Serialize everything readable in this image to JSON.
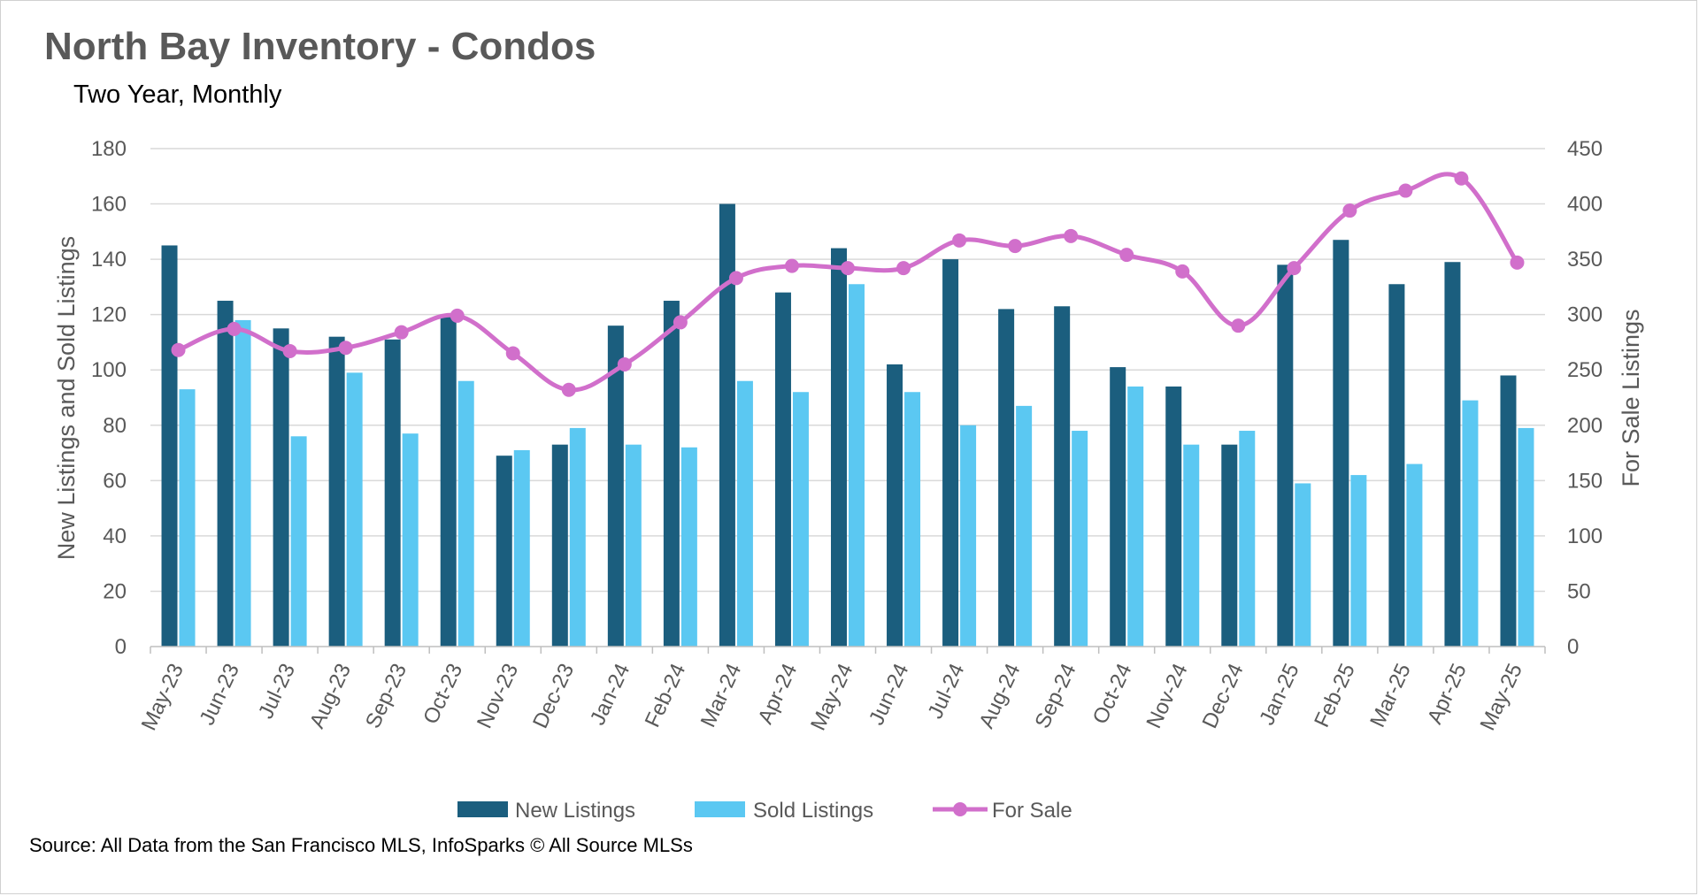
{
  "title": "North Bay Inventory - Condos",
  "subtitle": "Two Year, Monthly",
  "source": "Source: All Data from the San Francisco MLS, InfoSparks © All Source MLSs",
  "chart_data": {
    "type": "bar",
    "categories": [
      "May-23",
      "Jun-23",
      "Jul-23",
      "Aug-23",
      "Sep-23",
      "Oct-23",
      "Nov-23",
      "Dec-23",
      "Jan-24",
      "Feb-24",
      "Mar-24",
      "Apr-24",
      "May-24",
      "Jun-24",
      "Jul-24",
      "Aug-24",
      "Sep-24",
      "Oct-24",
      "Nov-24",
      "Dec-24",
      "Jan-25",
      "Feb-25",
      "Mar-25",
      "Apr-25",
      "May-25"
    ],
    "y_left": {
      "label": "New Listings and Sold Listings",
      "ylim": [
        0,
        180
      ],
      "ticks": [
        "0",
        "20",
        "40",
        "60",
        "80",
        "100",
        "120",
        "140",
        "160",
        "180"
      ]
    },
    "y_right": {
      "label": "For Sale Listings",
      "ylim": [
        0,
        450
      ],
      "ticks": [
        "0",
        "50",
        "100",
        "150",
        "200",
        "250",
        "300",
        "350",
        "400",
        "450"
      ]
    },
    "series": [
      {
        "name": "New Listings",
        "type": "bar",
        "axis": "left",
        "color": "#1b5e7e",
        "values": [
          145,
          125,
          115,
          112,
          111,
          120,
          69,
          73,
          116,
          125,
          160,
          128,
          144,
          102,
          140,
          122,
          123,
          101,
          94,
          73,
          138,
          147,
          131,
          139,
          98
        ]
      },
      {
        "name": "Sold Listings",
        "type": "bar",
        "axis": "left",
        "color": "#5bc8f2",
        "values": [
          93,
          118,
          76,
          99,
          77,
          96,
          71,
          79,
          73,
          72,
          96,
          92,
          131,
          92,
          80,
          87,
          78,
          94,
          73,
          78,
          59,
          62,
          66,
          89,
          79
        ]
      },
      {
        "name": "For Sale",
        "type": "line",
        "axis": "right",
        "color": "#d16fcb",
        "values": [
          268,
          287,
          267,
          270,
          284,
          299,
          265,
          232,
          255,
          293,
          333,
          344,
          342,
          342,
          367,
          362,
          371,
          354,
          339,
          290,
          342,
          394,
          412,
          423,
          347
        ]
      }
    ],
    "grid": true,
    "legend": "bottom"
  }
}
